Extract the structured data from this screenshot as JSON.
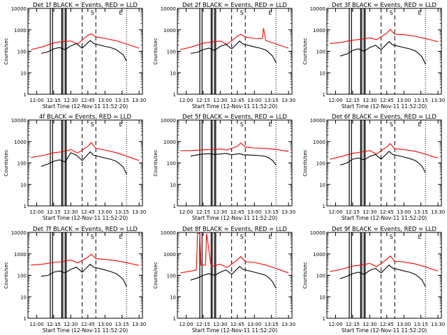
{
  "chart_data": {
    "type": "line",
    "layout": "3x3 grid of panels",
    "common": {
      "ylabel": "Counts/sec",
      "xlabel": "Start Time (12-Nov-11 11:52:20)",
      "y_scale": "log",
      "ylim": [
        1,
        10000
      ],
      "y_ticks": [
        1,
        10,
        100,
        1000,
        10000
      ],
      "y_tick_labels": [
        "1",
        "10",
        "100",
        "1000",
        "10000"
      ],
      "xlim": [
        "11:52:20",
        "13:33:00"
      ],
      "x_ticks": [
        "12:00",
        "12:15",
        "12:30",
        "12:45",
        "13:00",
        "13:15",
        "13:30"
      ],
      "x_tick_labels": [
        "12:00",
        "12:15",
        "12:30",
        "12:45",
        "13:00",
        "13:15",
        "13:30"
      ],
      "series_styles": [
        {
          "role": "events",
          "color": "#000000"
        },
        {
          "role": "lld",
          "color": "#ff0000"
        }
      ],
      "markers": [
        {
          "time": "12:49",
          "label": "S"
        },
        {
          "time": "13:14",
          "label": "E"
        }
      ],
      "dashed_lines": [
        "12:40",
        "12:52"
      ],
      "dotted_lines": [
        "13:19"
      ],
      "solid_lines": [
        "12:12",
        "12:14",
        "12:22",
        "12:23",
        "12:25",
        "12:26"
      ],
      "grid": false,
      "legend": "none"
    },
    "panels": [
      {
        "title": "Det 1f BLACK = Events, RED = LLD",
        "events": {
          "x": [
            "12:04",
            "12:10",
            "12:15",
            "12:20",
            "12:25",
            "12:30",
            "12:35",
            "12:40",
            "12:47",
            "12:50",
            "13:00",
            "13:05",
            "13:10",
            "13:13",
            "13:16",
            "13:19"
          ],
          "y": [
            80,
            95,
            130,
            150,
            120,
            180,
            230,
            140,
            320,
            230,
            170,
            150,
            120,
            90,
            70,
            35
          ]
        },
        "lld": {
          "x": [
            "11:55",
            "12:05",
            "12:15",
            "12:22",
            "12:30",
            "12:36",
            "12:45",
            "12:48",
            "12:52",
            "13:00",
            "13:10",
            "13:20",
            "13:25",
            "13:30"
          ],
          "y": [
            120,
            160,
            250,
            280,
            300,
            220,
            560,
            650,
            470,
            400,
            310,
            210,
            170,
            140
          ]
        }
      },
      {
        "title": "Det 2f BLACK = Events, RED = LLD",
        "events": {
          "x": [
            "12:04",
            "12:10",
            "12:15",
            "12:20",
            "12:25",
            "12:30",
            "12:35",
            "12:40",
            "12:47",
            "12:50",
            "13:00",
            "13:05",
            "13:10",
            "13:13",
            "13:16",
            "13:19"
          ],
          "y": [
            80,
            90,
            120,
            140,
            110,
            170,
            210,
            130,
            300,
            220,
            160,
            140,
            115,
            85,
            60,
            30
          ]
        },
        "lld": {
          "x": [
            "11:55",
            "12:05",
            "12:15",
            "12:22",
            "12:30",
            "12:36",
            "12:45",
            "12:48",
            "12:52",
            "13:00",
            "13:07",
            "13:08",
            "13:10",
            "13:20",
            "13:25",
            "13:30"
          ],
          "y": [
            120,
            160,
            240,
            270,
            300,
            210,
            500,
            620,
            460,
            400,
            390,
            1200,
            320,
            210,
            170,
            140
          ]
        }
      },
      {
        "title": "Det 3f BLACK = Events, RED = LLD",
        "events": {
          "x": [
            "12:04",
            "12:10",
            "12:15",
            "12:20",
            "12:25",
            "12:30",
            "12:35",
            "12:40",
            "12:47",
            "12:50",
            "13:00",
            "13:05",
            "13:10",
            "13:13",
            "13:16",
            "13:19"
          ],
          "y": [
            60,
            75,
            110,
            130,
            100,
            150,
            190,
            120,
            280,
            200,
            150,
            130,
            105,
            80,
            55,
            25
          ]
        },
        "lld": {
          "x": [
            "11:55",
            "12:05",
            "12:15",
            "12:22",
            "12:30",
            "12:36",
            "12:45",
            "12:48",
            "12:52",
            "13:00",
            "13:10",
            "13:20",
            "13:25",
            "13:30"
          ],
          "y": [
            230,
            260,
            330,
            360,
            420,
            350,
            700,
            1050,
            620,
            600,
            500,
            380,
            330,
            280
          ]
        }
      },
      {
        "title": "4f BLACK = Events, RED = LLD",
        "events": {
          "x": [
            "12:04",
            "12:10",
            "12:15",
            "12:20",
            "12:25",
            "12:30",
            "12:35",
            "12:40",
            "12:47",
            "12:50",
            "13:00",
            "13:05",
            "13:10",
            "13:13",
            "13:16",
            "13:19"
          ],
          "y": [
            70,
            90,
            120,
            140,
            110,
            300,
            230,
            130,
            330,
            230,
            170,
            150,
            120,
            90,
            65,
            30
          ]
        },
        "lld": {
          "x": [
            "11:55",
            "12:05",
            "12:15",
            "12:22",
            "12:30",
            "12:36",
            "12:45",
            "12:48",
            "12:52",
            "13:00",
            "13:10",
            "13:20",
            "13:25",
            "13:30"
          ],
          "y": [
            180,
            220,
            300,
            330,
            420,
            290,
            600,
            900,
            480,
            400,
            300,
            200,
            160,
            130
          ]
        }
      },
      {
        "title": "Det 5f BLACK = Events, RED = LLD",
        "events": {
          "x": [
            "12:04",
            "12:10",
            "12:15",
            "12:20",
            "12:25",
            "12:30",
            "12:35",
            "12:40",
            "12:47",
            "12:50",
            "13:00",
            "13:05",
            "13:10",
            "13:13",
            "13:16",
            "13:19"
          ],
          "y": [
            210,
            240,
            260,
            270,
            250,
            260,
            280,
            240,
            270,
            240,
            230,
            220,
            200,
            170,
            130,
            80
          ]
        },
        "lld": {
          "x": [
            "11:55",
            "12:05",
            "12:15",
            "12:22",
            "12:30",
            "12:36",
            "12:45",
            "12:48",
            "12:52",
            "13:00",
            "13:10",
            "13:20",
            "13:25",
            "13:30"
          ],
          "y": [
            370,
            380,
            410,
            420,
            450,
            400,
            600,
            850,
            550,
            500,
            480,
            420,
            380,
            350
          ]
        }
      },
      {
        "title": "Det 6f BLACK = Events, RED = LLD",
        "events": {
          "x": [
            "12:04",
            "12:10",
            "12:15",
            "12:20",
            "12:25",
            "12:30",
            "12:35",
            "12:40",
            "12:47",
            "12:50",
            "13:00",
            "13:05",
            "13:10",
            "13:13",
            "13:16",
            "13:19"
          ],
          "y": [
            80,
            100,
            150,
            170,
            140,
            200,
            250,
            150,
            350,
            250,
            190,
            160,
            130,
            100,
            70,
            35
          ]
        },
        "lld": {
          "x": [
            "11:55",
            "12:05",
            "12:15",
            "12:22",
            "12:30",
            "12:36",
            "12:45",
            "12:48",
            "12:52",
            "13:00",
            "13:10",
            "13:20",
            "13:25",
            "13:30"
          ],
          "y": [
            150,
            200,
            280,
            320,
            380,
            260,
            560,
            800,
            460,
            420,
            350,
            250,
            200,
            170
          ]
        }
      },
      {
        "title": "Det 7f BLACK = Events, RED = LLD",
        "events": {
          "x": [
            "12:04",
            "12:10",
            "12:15",
            "12:20",
            "12:25",
            "12:30",
            "12:35",
            "12:40",
            "12:47",
            "12:50",
            "13:00",
            "13:05",
            "13:10",
            "13:13",
            "13:16",
            "13:19"
          ],
          "y": [
            90,
            100,
            140,
            160,
            130,
            190,
            240,
            140,
            330,
            240,
            180,
            150,
            120,
            90,
            65,
            30
          ]
        },
        "lld": {
          "x": [
            "11:55",
            "12:05",
            "12:15",
            "12:22",
            "12:30",
            "12:36",
            "12:45",
            "12:48",
            "12:52",
            "13:00",
            "13:10",
            "13:20",
            "13:25",
            "13:30"
          ],
          "y": [
            300,
            330,
            400,
            430,
            520,
            380,
            700,
            950,
            600,
            550,
            480,
            380,
            330,
            290
          ]
        }
      },
      {
        "title": "Det 8f BLACK = Events, RED = LLD",
        "events": {
          "x": [
            "12:04",
            "12:10",
            "12:15",
            "12:20",
            "12:25",
            "12:30",
            "12:35",
            "12:40",
            "12:47",
            "12:50",
            "13:00",
            "13:05",
            "13:10",
            "13:13",
            "13:16",
            "13:19"
          ],
          "y": [
            60,
            75,
            100,
            120,
            100,
            140,
            180,
            110,
            260,
            190,
            140,
            120,
            100,
            75,
            50,
            25
          ]
        },
        "lld": {
          "x": [
            "11:55",
            "12:05",
            "12:09",
            "12:10",
            "12:12",
            "12:13",
            "12:17",
            "12:18",
            "12:22",
            "12:30",
            "12:36",
            "12:45",
            "12:48",
            "12:52",
            "13:00",
            "13:10",
            "13:20",
            "13:25",
            "13:30"
          ],
          "y": [
            130,
            160,
            180,
            9000,
            9000,
            300,
            300,
            9000,
            260,
            330,
            230,
            520,
            750,
            430,
            400,
            300,
            200,
            160,
            130
          ]
        }
      },
      {
        "title": "Det 9f BLACK = Events, RED = LLD",
        "events": {
          "x": [
            "12:04",
            "12:10",
            "12:15",
            "12:20",
            "12:25",
            "12:30",
            "12:35",
            "12:40",
            "12:47",
            "12:50",
            "13:00",
            "13:05",
            "13:10",
            "13:13",
            "13:16",
            "13:19"
          ],
          "y": [
            70,
            90,
            120,
            140,
            110,
            170,
            210,
            130,
            300,
            220,
            160,
            140,
            110,
            85,
            60,
            30
          ]
        },
        "lld": {
          "x": [
            "11:55",
            "12:05",
            "12:15",
            "12:22",
            "12:30",
            "12:36",
            "12:45",
            "12:48",
            "12:52",
            "13:00",
            "13:10",
            "13:20",
            "13:25",
            "13:30"
          ],
          "y": [
            150,
            190,
            270,
            300,
            360,
            250,
            560,
            800,
            450,
            420,
            340,
            240,
            190,
            160
          ]
        }
      }
    ]
  }
}
